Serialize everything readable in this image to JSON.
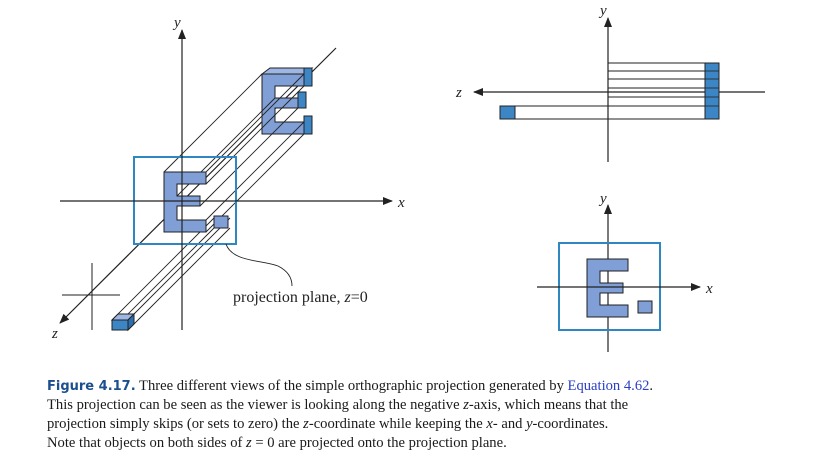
{
  "figure": {
    "left_view": {
      "axis_x": "x",
      "axis_y": "y",
      "axis_z": "z",
      "plane_label_prefix": "projection plane, ",
      "plane_label_var": "z",
      "plane_label_suffix": "=0"
    },
    "top_view": {
      "axis_y": "y",
      "axis_z": "z"
    },
    "front_view": {
      "axis_x": "x",
      "axis_y": "y"
    },
    "colors": {
      "object_fill": "#7f9fd6",
      "cube_fill": "#3d86c6",
      "plane_border": "#2e87c0",
      "line": "#222222"
    }
  },
  "caption": {
    "label": "Figure 4.17.",
    "line1_a": " Three different views of the simple orthographic projection generated by ",
    "equation_ref": "Equation 4.62",
    "line1_b": ".",
    "line2_a": "This projection can be seen as the viewer is looking along the negative ",
    "line2_var": "z",
    "line2_b": "-axis, which means that the",
    "line3_a": "projection simply skips (or sets to zero) the ",
    "line3_var": "z",
    "line3_b": "-coordinate while keeping the ",
    "line3_var2": "x",
    "line3_c": "- and ",
    "line3_var3": "y",
    "line3_d": "-coordinates.",
    "line4_a": "Note that objects on both sides of ",
    "line4_var": "z",
    "line4_b": " = 0 are projected onto the projection plane."
  }
}
